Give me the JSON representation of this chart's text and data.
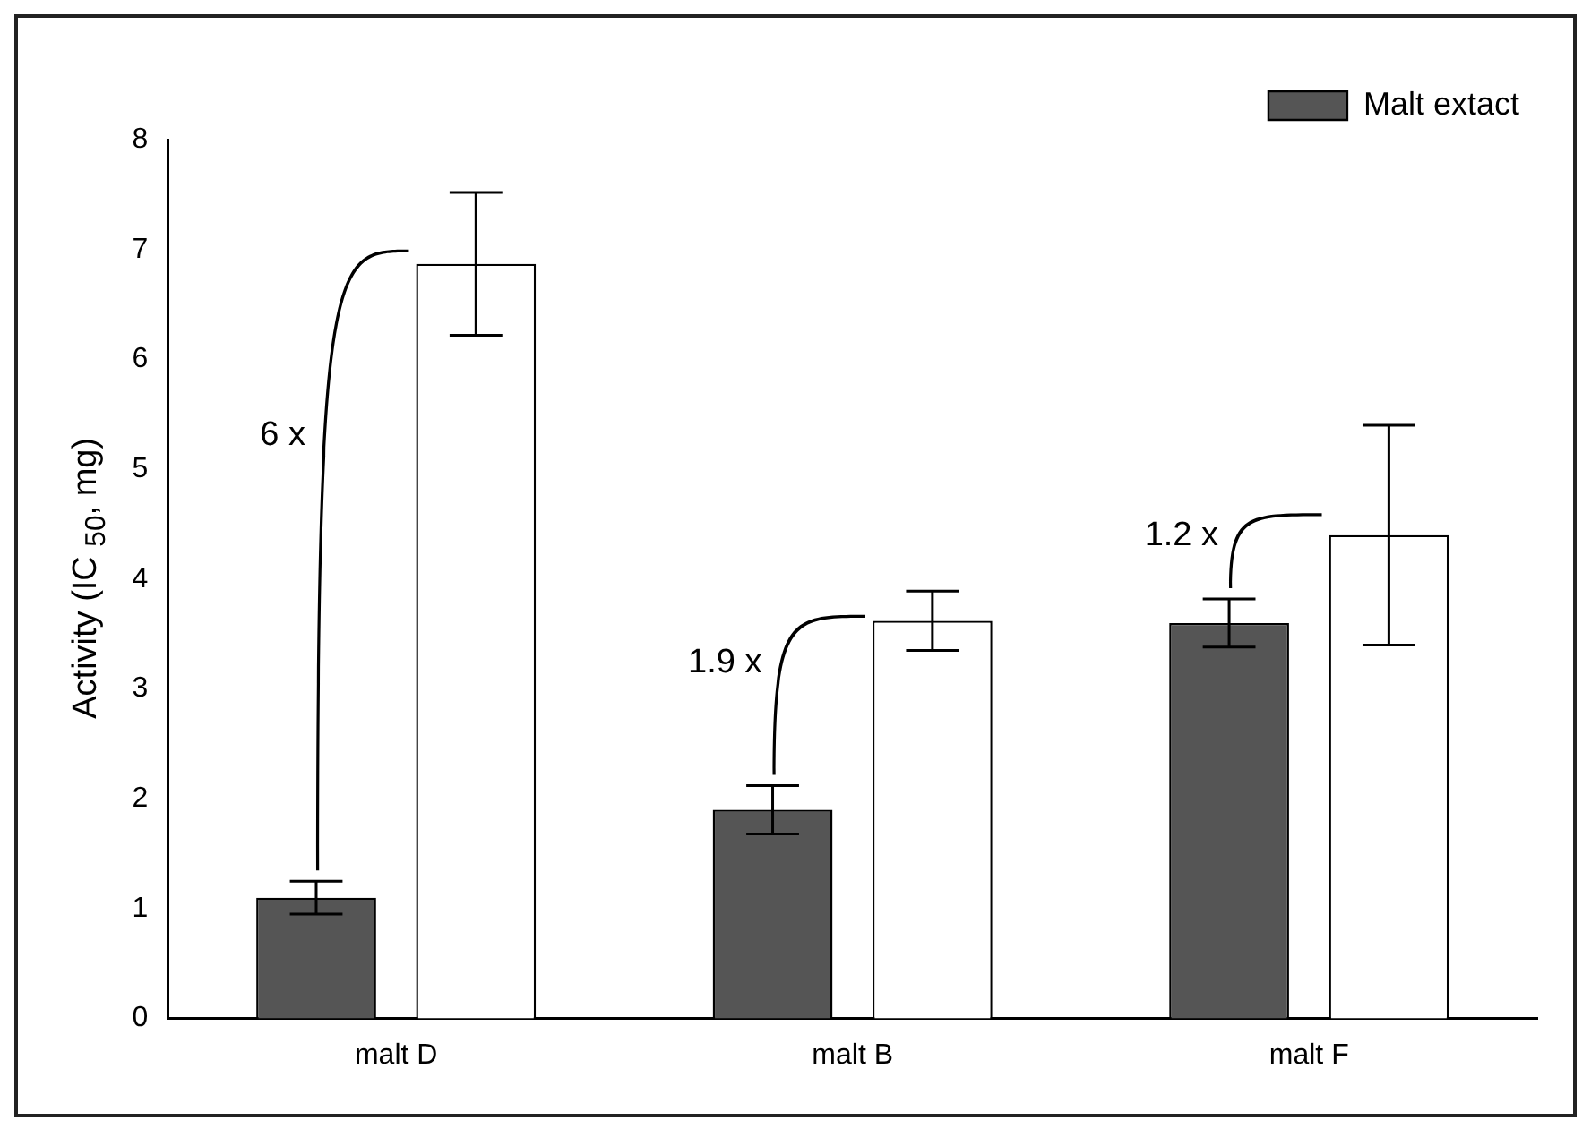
{
  "chart_data": {
    "type": "bar",
    "ylabel": "Activity (IC $_{50}$, mg)",
    "categories": [
      "malt D",
      "malt B",
      "malt F"
    ],
    "series": [
      {
        "name": "Malt extact",
        "color": "#555555",
        "values": [
          1.1,
          1.9,
          3.6
        ],
        "errors": [
          0.15,
          0.22,
          0.22
        ]
      },
      {
        "color": "#ffffff",
        "values": [
          6.87,
          3.62,
          4.4
        ],
        "errors": [
          0.65,
          0.27,
          1.0
        ]
      }
    ],
    "ylim": [
      0,
      8
    ],
    "yticks": [
      0,
      1,
      2,
      3,
      4,
      5,
      6,
      7,
      8
    ],
    "grid": false,
    "legend": "top right",
    "annotations": [
      "6 x",
      "1.9 x",
      "1.2 x"
    ]
  }
}
